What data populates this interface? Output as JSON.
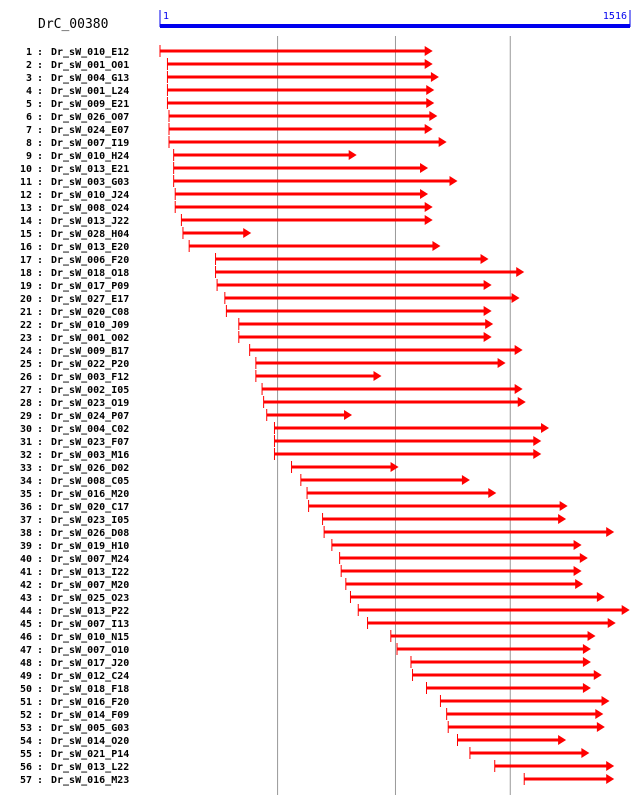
{
  "contig": {
    "name": "DrC_00380",
    "range_start_label": "1",
    "range_end_label": "1516",
    "length": 1516
  },
  "colors": {
    "scale_bar": "#0000ee",
    "read_arrow": "#ff0000",
    "guide_line": "#999999",
    "text": "#000000"
  },
  "chart_data": {
    "type": "alignment",
    "x_range": [
      1,
      1516
    ],
    "guide_positions": [
      380,
      760,
      1130
    ],
    "reads": [
      {
        "index": "1",
        "name": "Dr_sW_010_E12",
        "start": 1,
        "end": 880
      },
      {
        "index": "2",
        "name": "Dr_sW_001_O01",
        "start": 25,
        "end": 880
      },
      {
        "index": "3",
        "name": "Dr_sW_004_G13",
        "start": 25,
        "end": 900
      },
      {
        "index": "4",
        "name": "Dr_sW_001_L24",
        "start": 25,
        "end": 885
      },
      {
        "index": "5",
        "name": "Dr_sW_009_E21",
        "start": 25,
        "end": 885
      },
      {
        "index": "6",
        "name": "Dr_sW_026_O07",
        "start": 30,
        "end": 895
      },
      {
        "index": "7",
        "name": "Dr_sW_024_E07",
        "start": 30,
        "end": 880
      },
      {
        "index": "8",
        "name": "Dr_sW_007_I19",
        "start": 30,
        "end": 925
      },
      {
        "index": "9",
        "name": "Dr_sW_010_H24",
        "start": 45,
        "end": 635
      },
      {
        "index": "10",
        "name": "Dr_sW_013_E21",
        "start": 45,
        "end": 865
      },
      {
        "index": "11",
        "name": "Dr_sW_003_G03",
        "start": 45,
        "end": 960
      },
      {
        "index": "12",
        "name": "Dr_sW_010_J24",
        "start": 50,
        "end": 865
      },
      {
        "index": "13",
        "name": "Dr_sW_008_O24",
        "start": 50,
        "end": 880
      },
      {
        "index": "14",
        "name": "Dr_sW_013_J22",
        "start": 70,
        "end": 880
      },
      {
        "index": "15",
        "name": "Dr_sW_028_H04",
        "start": 75,
        "end": 295
      },
      {
        "index": "16",
        "name": "Dr_sW_013_E20",
        "start": 95,
        "end": 905
      },
      {
        "index": "17",
        "name": "Dr_sW_006_F20",
        "start": 180,
        "end": 1060
      },
      {
        "index": "18",
        "name": "Dr_sW_018_O18",
        "start": 180,
        "end": 1175
      },
      {
        "index": "19",
        "name": "Dr_sW_017_P09",
        "start": 185,
        "end": 1070
      },
      {
        "index": "20",
        "name": "Dr_sW_027_E17",
        "start": 210,
        "end": 1160
      },
      {
        "index": "21",
        "name": "Dr_sW_020_C08",
        "start": 215,
        "end": 1070
      },
      {
        "index": "22",
        "name": "Dr_sW_010_J09",
        "start": 255,
        "end": 1075
      },
      {
        "index": "23",
        "name": "Dr_sW_001_O02",
        "start": 255,
        "end": 1070
      },
      {
        "index": "24",
        "name": "Dr_sW_009_B17",
        "start": 290,
        "end": 1170
      },
      {
        "index": "25",
        "name": "Dr_sW_022_P20",
        "start": 310,
        "end": 1115
      },
      {
        "index": "26",
        "name": "Dr_sW_003_F12",
        "start": 310,
        "end": 715
      },
      {
        "index": "27",
        "name": "Dr_sW_002_I05",
        "start": 330,
        "end": 1170
      },
      {
        "index": "28",
        "name": "Dr_sW_023_O19",
        "start": 335,
        "end": 1180
      },
      {
        "index": "29",
        "name": "Dr_sW_024_P07",
        "start": 345,
        "end": 620
      },
      {
        "index": "30",
        "name": "Dr_sW_004_C02",
        "start": 370,
        "end": 1255
      },
      {
        "index": "31",
        "name": "Dr_sW_023_F07",
        "start": 370,
        "end": 1230
      },
      {
        "index": "32",
        "name": "Dr_sW_003_M16",
        "start": 370,
        "end": 1230
      },
      {
        "index": "33",
        "name": "Dr_sW_026_D02",
        "start": 425,
        "end": 770
      },
      {
        "index": "34",
        "name": "Dr_sW_008_C05",
        "start": 455,
        "end": 1000
      },
      {
        "index": "35",
        "name": "Dr_sW_016_M20",
        "start": 475,
        "end": 1085
      },
      {
        "index": "36",
        "name": "Dr_sW_020_C17",
        "start": 480,
        "end": 1315
      },
      {
        "index": "37",
        "name": "Dr_sW_023_I05",
        "start": 525,
        "end": 1310
      },
      {
        "index": "38",
        "name": "Dr_sW_026_D08",
        "start": 530,
        "end": 1465
      },
      {
        "index": "39",
        "name": "Dr_sW_019_H10",
        "start": 555,
        "end": 1360
      },
      {
        "index": "40",
        "name": "Dr_sW_007_M24",
        "start": 580,
        "end": 1380
      },
      {
        "index": "41",
        "name": "Dr_sW_013_I22",
        "start": 585,
        "end": 1360
      },
      {
        "index": "42",
        "name": "Dr_sW_007_M20",
        "start": 600,
        "end": 1365
      },
      {
        "index": "43",
        "name": "Dr_sW_025_O23",
        "start": 615,
        "end": 1435
      },
      {
        "index": "44",
        "name": "Dr_sW_013_P22",
        "start": 640,
        "end": 1515
      },
      {
        "index": "45",
        "name": "Dr_sW_007_I13",
        "start": 670,
        "end": 1470
      },
      {
        "index": "46",
        "name": "Dr_sW_010_N15",
        "start": 745,
        "end": 1405
      },
      {
        "index": "47",
        "name": "Dr_sW_007_O10",
        "start": 765,
        "end": 1390
      },
      {
        "index": "48",
        "name": "Dr_sW_017_J20",
        "start": 810,
        "end": 1390
      },
      {
        "index": "49",
        "name": "Dr_sW_012_C24",
        "start": 815,
        "end": 1425
      },
      {
        "index": "50",
        "name": "Dr_sW_018_F18",
        "start": 860,
        "end": 1390
      },
      {
        "index": "51",
        "name": "Dr_sW_016_F20",
        "start": 905,
        "end": 1450
      },
      {
        "index": "52",
        "name": "Dr_sW_014_F09",
        "start": 925,
        "end": 1430
      },
      {
        "index": "53",
        "name": "Dr_sW_005_G03",
        "start": 930,
        "end": 1435
      },
      {
        "index": "54",
        "name": "Dr_sW_014_O20",
        "start": 960,
        "end": 1310
      },
      {
        "index": "55",
        "name": "Dr_sW_021_P14",
        "start": 1000,
        "end": 1385
      },
      {
        "index": "56",
        "name": "Dr_sW_013_L22",
        "start": 1080,
        "end": 1465
      },
      {
        "index": "57",
        "name": "Dr_sW_016_M23",
        "start": 1175,
        "end": 1465
      }
    ]
  }
}
